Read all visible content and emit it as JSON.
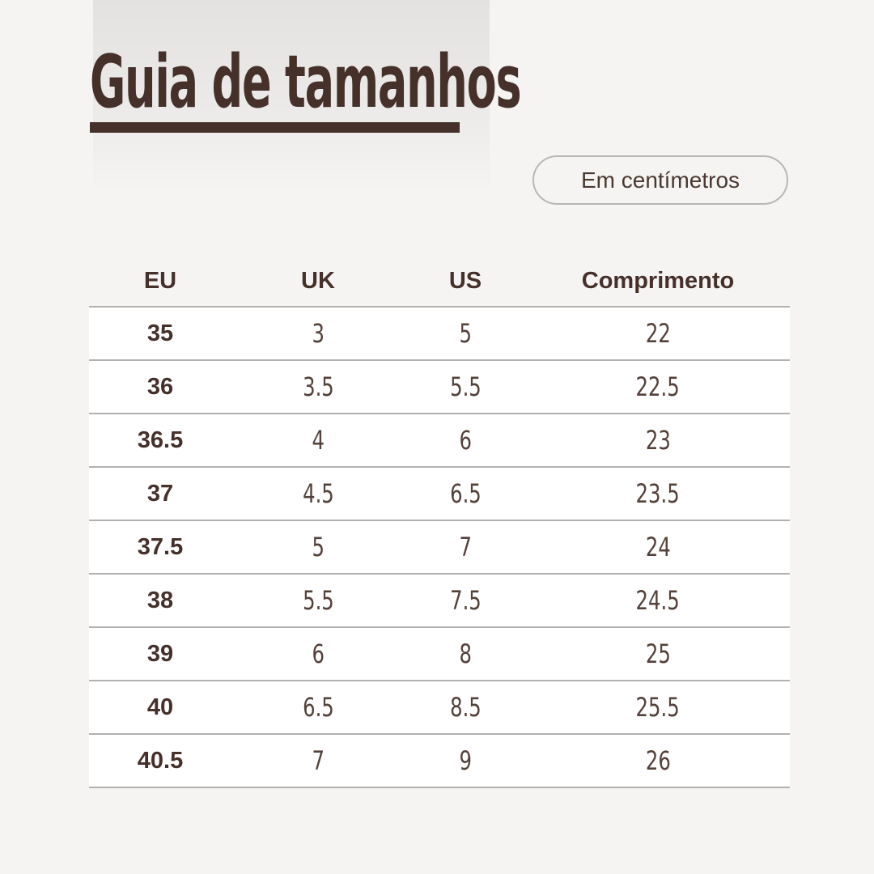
{
  "page": {
    "title": "Guia de tamanhos",
    "unit_badge_label": "Em centímetros"
  },
  "size_table": {
    "headers": [
      "EU",
      "UK",
      "US",
      "Comprimento"
    ],
    "rows": [
      [
        "35",
        "3",
        "5",
        "22"
      ],
      [
        "36",
        "3.5",
        "5.5",
        "22.5"
      ],
      [
        "36.5",
        "4",
        "6",
        "23"
      ],
      [
        "37",
        "4.5",
        "6.5",
        "23.5"
      ],
      [
        "37.5",
        "5",
        "7",
        "24"
      ],
      [
        "38",
        "5.5",
        "7.5",
        "24.5"
      ],
      [
        "39",
        "6",
        "8",
        "25"
      ],
      [
        "40",
        "6.5",
        "8.5",
        "25.5"
      ],
      [
        "40.5",
        "7",
        "9",
        "26"
      ]
    ]
  },
  "colors": {
    "background": "#f5f4f3",
    "panel_top": "#e3e2e1",
    "brown": "#45302a",
    "ink_soft": "#54413a",
    "separator": "#b3b1af",
    "badge_border": "#b9b7b5",
    "row_bg": "#ffffff"
  }
}
